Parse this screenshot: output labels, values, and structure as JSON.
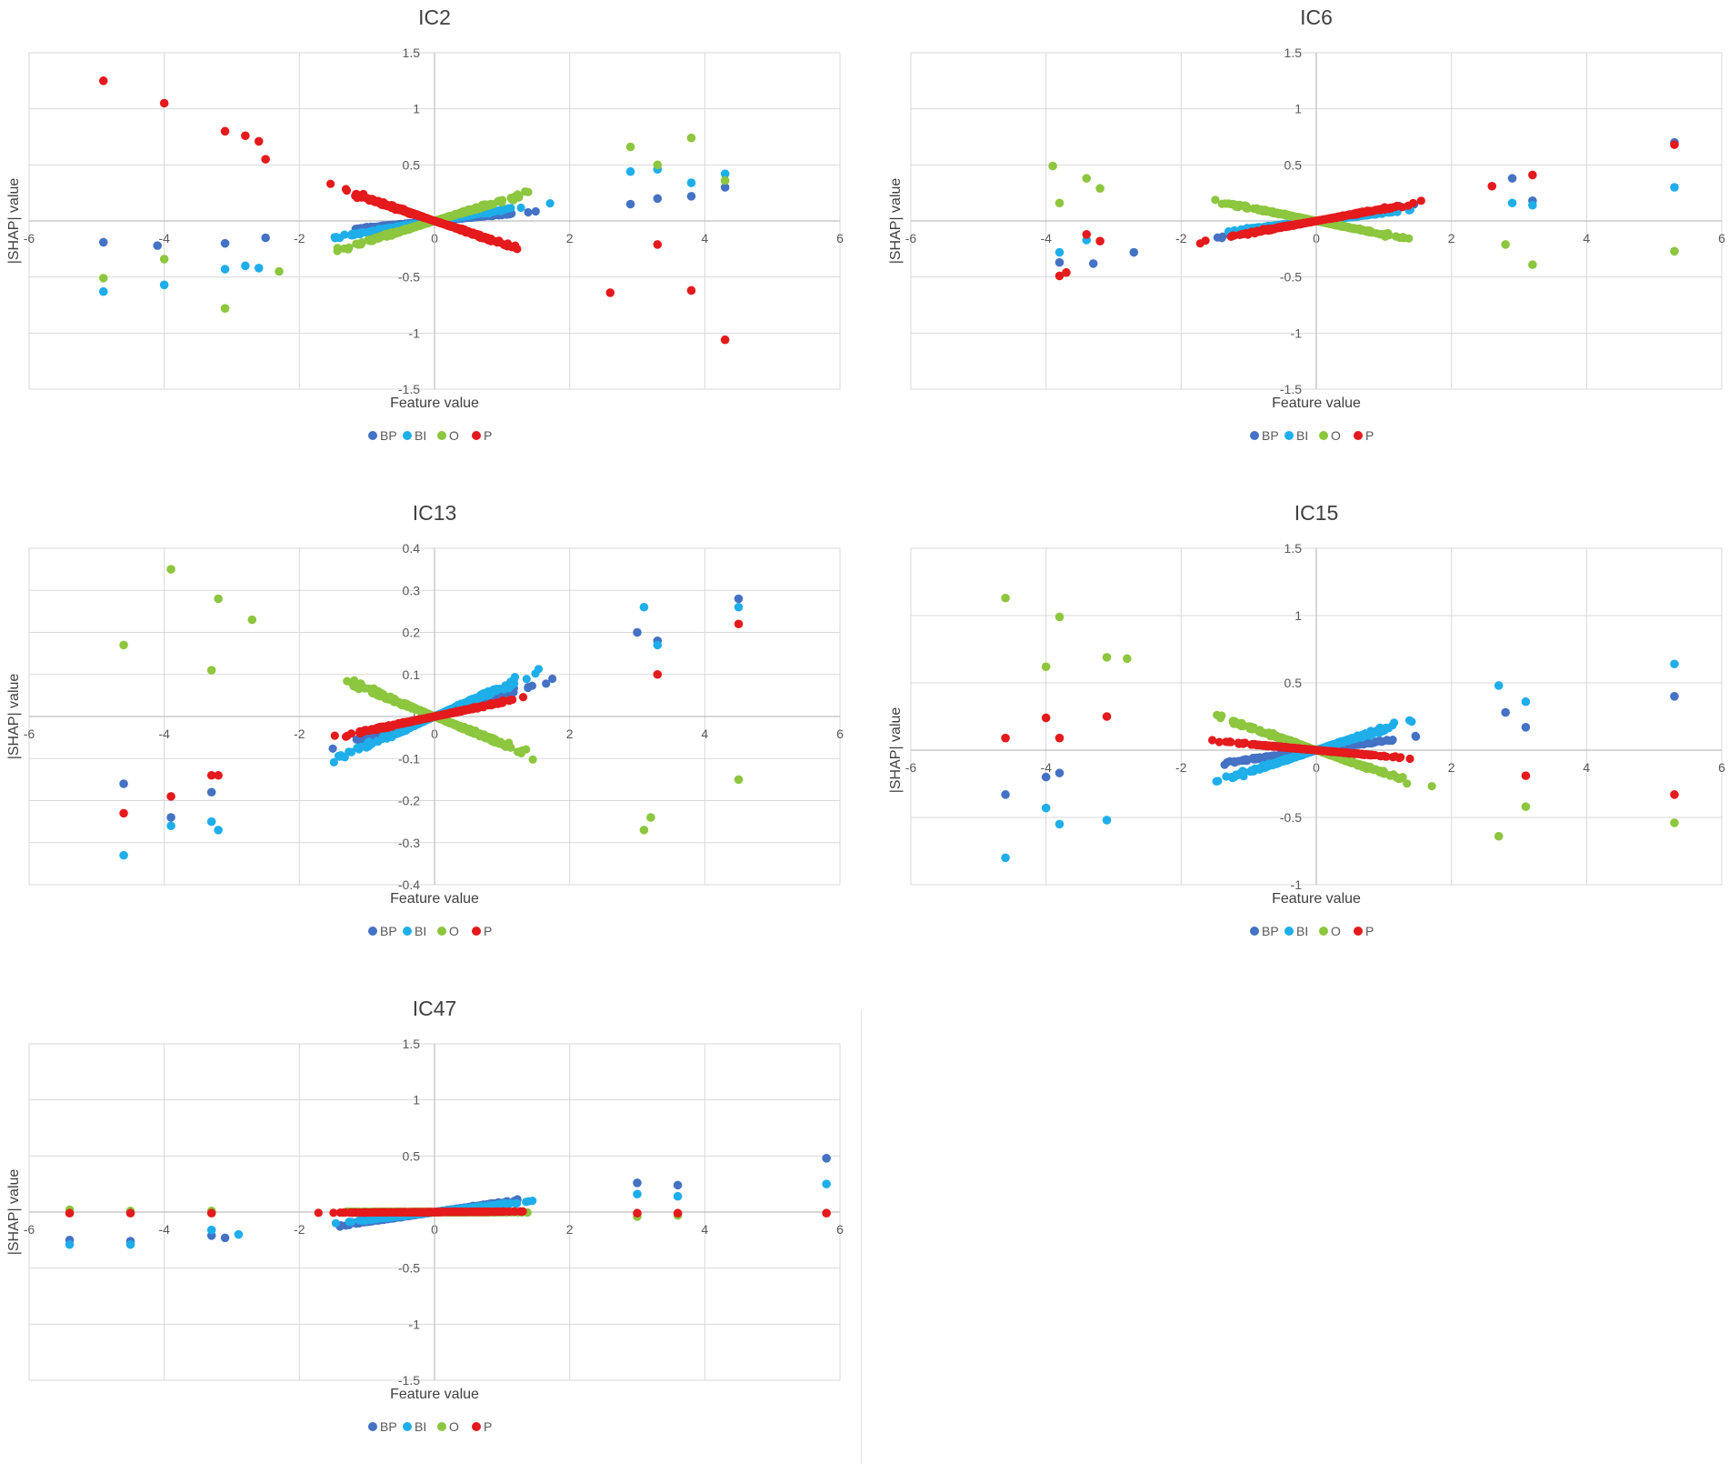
{
  "legend": [
    {
      "key": "BP",
      "label": "BP",
      "color": "#4472C4"
    },
    {
      "key": "BI",
      "label": "BI",
      "color": "#1EAEEA"
    },
    {
      "key": "O",
      "label": "O",
      "color": "#8DC63F"
    },
    {
      "key": "P",
      "label": "P",
      "color": "#E41A1C"
    }
  ],
  "chart_data": [
    {
      "type": "scatter",
      "title": "IC2",
      "xlabel": "Feature value",
      "ylabel": "|SHAP| value",
      "xlim": [
        -6,
        6
      ],
      "ylim": [
        -1.5,
        1.5
      ],
      "xticks": [
        "-6",
        "-4",
        "-2",
        "0",
        "2",
        "4",
        "6"
      ],
      "yticks": [
        "1.5",
        "1",
        "0.5",
        "0",
        "-0.5",
        "-1",
        "-1.5"
      ],
      "grid": true,
      "legend_position": "bottom",
      "cloud_slopes": {
        "BP": 0.06,
        "BI": 0.1,
        "O": 0.18,
        "P": -0.2
      },
      "series": [
        {
          "name": "BP",
          "points": [
            [
              -4.9,
              -0.19
            ],
            [
              -4.1,
              -0.22
            ],
            [
              -3.1,
              -0.2
            ],
            [
              -2.5,
              -0.15
            ],
            [
              3.3,
              0.2
            ],
            [
              3.8,
              0.22
            ],
            [
              4.3,
              0.3
            ],
            [
              2.9,
              0.15
            ]
          ]
        },
        {
          "name": "BI",
          "points": [
            [
              -4.9,
              -0.63
            ],
            [
              -4.0,
              -0.57
            ],
            [
              -3.1,
              -0.43
            ],
            [
              -2.8,
              -0.4
            ],
            [
              -2.6,
              -0.42
            ],
            [
              3.3,
              0.46
            ],
            [
              3.8,
              0.34
            ],
            [
              4.3,
              0.42
            ],
            [
              2.9,
              0.44
            ]
          ]
        },
        {
          "name": "O",
          "points": [
            [
              -4.9,
              -0.51
            ],
            [
              -4.0,
              -0.34
            ],
            [
              -3.1,
              -0.78
            ],
            [
              -2.3,
              -0.45
            ],
            [
              3.8,
              0.74
            ],
            [
              4.3,
              0.36
            ],
            [
              3.3,
              0.5
            ],
            [
              2.9,
              0.66
            ]
          ]
        },
        {
          "name": "P",
          "points": [
            [
              -4.9,
              1.25
            ],
            [
              -4.0,
              1.05
            ],
            [
              -3.1,
              0.8
            ],
            [
              -2.8,
              0.76
            ],
            [
              -2.6,
              0.71
            ],
            [
              -2.5,
              0.55
            ],
            [
              3.8,
              -0.62
            ],
            [
              4.3,
              -1.06
            ],
            [
              2.6,
              -0.64
            ],
            [
              3.3,
              -0.21
            ]
          ]
        }
      ]
    },
    {
      "type": "scatter",
      "title": "IC6",
      "xlabel": "Feature value",
      "ylabel": "|SHAP| value",
      "xlim": [
        -6,
        6
      ],
      "ylim": [
        -1.5,
        1.5
      ],
      "xticks": [
        "-6",
        "-4",
        "-2",
        "0",
        "2",
        "4",
        "6"
      ],
      "yticks": [
        "1.5",
        "1",
        "0.5",
        "0",
        "-0.5",
        "-1",
        "-1.5"
      ],
      "grid": true,
      "legend_position": "bottom",
      "cloud_slopes": {
        "BP": 0.1,
        "BI": 0.07,
        "O": -0.12,
        "P": 0.11
      },
      "series": [
        {
          "name": "BP",
          "points": [
            [
              -3.8,
              -0.37
            ],
            [
              -3.3,
              -0.38
            ],
            [
              -2.7,
              -0.28
            ],
            [
              3.2,
              0.18
            ],
            [
              2.9,
              0.38
            ],
            [
              5.3,
              0.7
            ]
          ]
        },
        {
          "name": "BI",
          "points": [
            [
              -3.8,
              -0.28
            ],
            [
              -3.4,
              -0.17
            ],
            [
              3.2,
              0.14
            ],
            [
              2.9,
              0.16
            ],
            [
              5.3,
              0.3
            ]
          ]
        },
        {
          "name": "O",
          "points": [
            [
              -3.9,
              0.49
            ],
            [
              -3.8,
              0.16
            ],
            [
              -3.4,
              0.38
            ],
            [
              -3.2,
              0.29
            ],
            [
              3.2,
              -0.39
            ],
            [
              2.8,
              -0.21
            ],
            [
              5.3,
              -0.27
            ]
          ]
        },
        {
          "name": "P",
          "points": [
            [
              -3.8,
              -0.49
            ],
            [
              -3.7,
              -0.46
            ],
            [
              -3.4,
              -0.12
            ],
            [
              -3.2,
              -0.18
            ],
            [
              3.2,
              0.41
            ],
            [
              2.6,
              0.31
            ],
            [
              5.3,
              0.68
            ]
          ]
        }
      ]
    },
    {
      "type": "scatter",
      "title": "IC13",
      "xlabel": "Feature value",
      "ylabel": "|SHAP| value",
      "xlim": [
        -6,
        6
      ],
      "ylim": [
        -0.4,
        0.4
      ],
      "xticks": [
        "-6",
        "-4",
        "-2",
        "0",
        "2",
        "4",
        "6"
      ],
      "yticks": [
        "0.4",
        "0.3",
        "0.2",
        "0.1",
        "0",
        "-0.1",
        "-0.2",
        "-0.3",
        "-0.4"
      ],
      "grid": true,
      "legend_position": "bottom",
      "cloud_slopes": {
        "BP": 0.05,
        "BI": 0.07,
        "O": -0.065,
        "P": 0.034
      },
      "series": [
        {
          "name": "BP",
          "points": [
            [
              -4.6,
              -0.16
            ],
            [
              -3.9,
              -0.24
            ],
            [
              -3.3,
              -0.18
            ],
            [
              3.0,
              0.2
            ],
            [
              3.3,
              0.18
            ],
            [
              4.5,
              0.28
            ]
          ]
        },
        {
          "name": "BI",
          "points": [
            [
              -4.6,
              -0.33
            ],
            [
              -3.9,
              -0.26
            ],
            [
              -3.3,
              -0.25
            ],
            [
              -3.2,
              -0.27
            ],
            [
              3.1,
              0.26
            ],
            [
              3.3,
              0.17
            ],
            [
              4.5,
              0.26
            ]
          ]
        },
        {
          "name": "O",
          "points": [
            [
              -4.6,
              0.17
            ],
            [
              -3.9,
              0.35
            ],
            [
              -3.3,
              0.11
            ],
            [
              -3.2,
              0.28
            ],
            [
              -2.7,
              0.23
            ],
            [
              3.1,
              -0.27
            ],
            [
              3.2,
              -0.24
            ],
            [
              4.5,
              -0.15
            ]
          ]
        },
        {
          "name": "P",
          "points": [
            [
              -4.6,
              -0.23
            ],
            [
              -3.9,
              -0.19
            ],
            [
              -3.3,
              -0.14
            ],
            [
              -3.2,
              -0.14
            ],
            [
              3.3,
              0.1
            ],
            [
              4.5,
              0.22
            ]
          ]
        }
      ]
    },
    {
      "type": "scatter",
      "title": "IC15",
      "xlabel": "Feature value",
      "ylabel": "|SHAP| value",
      "xlim": [
        -6,
        6
      ],
      "ylim": [
        -1,
        1.5
      ],
      "xticks": [
        "-6",
        "-4",
        "-2",
        "0",
        "2",
        "4",
        "6"
      ],
      "yticks": [
        "1.5",
        "1",
        "0.5",
        "0",
        "-0.5",
        "-1"
      ],
      "grid": true,
      "legend_position": "bottom",
      "cloud_slopes": {
        "BP": 0.07,
        "BI": 0.16,
        "O": -0.17,
        "P": -0.045
      },
      "series": [
        {
          "name": "BP",
          "points": [
            [
              -4.6,
              -0.33
            ],
            [
              -4.0,
              -0.2
            ],
            [
              -3.8,
              -0.17
            ],
            [
              3.1,
              0.17
            ],
            [
              2.8,
              0.28
            ],
            [
              5.3,
              0.4
            ]
          ]
        },
        {
          "name": "BI",
          "points": [
            [
              -4.6,
              -0.8
            ],
            [
              -4.0,
              -0.43
            ],
            [
              -3.8,
              -0.55
            ],
            [
              -3.1,
              -0.52
            ],
            [
              3.1,
              0.36
            ],
            [
              2.7,
              0.48
            ],
            [
              5.3,
              0.64
            ]
          ]
        },
        {
          "name": "O",
          "points": [
            [
              -4.6,
              1.13
            ],
            [
              -4.0,
              0.62
            ],
            [
              -3.8,
              0.99
            ],
            [
              -3.1,
              0.69
            ],
            [
              -2.8,
              0.68
            ],
            [
              3.1,
              -0.42
            ],
            [
              2.7,
              -0.64
            ],
            [
              5.3,
              -0.54
            ]
          ]
        },
        {
          "name": "P",
          "points": [
            [
              -4.6,
              0.09
            ],
            [
              -4.0,
              0.24
            ],
            [
              -3.8,
              0.09
            ],
            [
              -3.1,
              0.25
            ],
            [
              3.1,
              -0.19
            ],
            [
              5.3,
              -0.33
            ]
          ]
        }
      ]
    },
    {
      "type": "scatter",
      "title": "IC47",
      "xlabel": "Feature value",
      "ylabel": "|SHAP| value",
      "xlim": [
        -6,
        6
      ],
      "ylim": [
        -1.5,
        1.5
      ],
      "xticks": [
        "-6",
        "-4",
        "-2",
        "0",
        "2",
        "4",
        "6"
      ],
      "yticks": [
        "1.5",
        "1",
        "0.5",
        "0",
        "-0.5",
        "-1",
        "-1.5"
      ],
      "grid": true,
      "legend_position": "bottom",
      "cloud_slopes": {
        "BP": 0.085,
        "BI": 0.068,
        "O": -0.003,
        "P": 0.004
      },
      "series": [
        {
          "name": "BP",
          "points": [
            [
              -5.4,
              -0.25
            ],
            [
              -4.5,
              -0.26
            ],
            [
              -3.3,
              -0.21
            ],
            [
              -3.1,
              -0.23
            ],
            [
              3.0,
              0.26
            ],
            [
              3.6,
              0.24
            ],
            [
              5.8,
              0.48
            ]
          ]
        },
        {
          "name": "BI",
          "points": [
            [
              -5.4,
              -0.29
            ],
            [
              -4.5,
              -0.29
            ],
            [
              -3.3,
              -0.16
            ],
            [
              -2.9,
              -0.2
            ],
            [
              3.0,
              0.16
            ],
            [
              3.6,
              0.14
            ],
            [
              5.8,
              0.25
            ]
          ]
        },
        {
          "name": "O",
          "points": [
            [
              -5.4,
              0.02
            ],
            [
              -4.5,
              0.01
            ],
            [
              -3.3,
              0.01
            ],
            [
              3.0,
              -0.04
            ],
            [
              3.6,
              -0.03
            ],
            [
              5.8,
              -0.01
            ]
          ]
        },
        {
          "name": "P",
          "points": [
            [
              -5.4,
              -0.01
            ],
            [
              -4.5,
              -0.01
            ],
            [
              -3.3,
              -0.01
            ],
            [
              3.0,
              -0.01
            ],
            [
              3.6,
              -0.01
            ],
            [
              5.8,
              -0.01
            ]
          ]
        }
      ]
    }
  ]
}
